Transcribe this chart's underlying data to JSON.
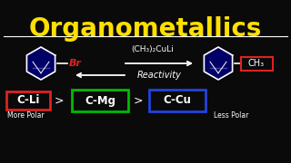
{
  "title": "Organometallics",
  "title_color": "#FFE000",
  "bg_color": "#0a0a0a",
  "white": "#FFFFFF",
  "red": "#DD2222",
  "green": "#00BB00",
  "blue": "#2244DD",
  "reagent_text": "(CH₃)₂CuLi",
  "reactivity_text": "Reactivity",
  "br_text": "Br",
  "ch3_text": "CH₃",
  "cli_text": "C-Li",
  "cmg_text": "C-Mg",
  "ccu_text": "C-Cu",
  "more_polar": "More Polar",
  "less_polar": "Less Polar"
}
